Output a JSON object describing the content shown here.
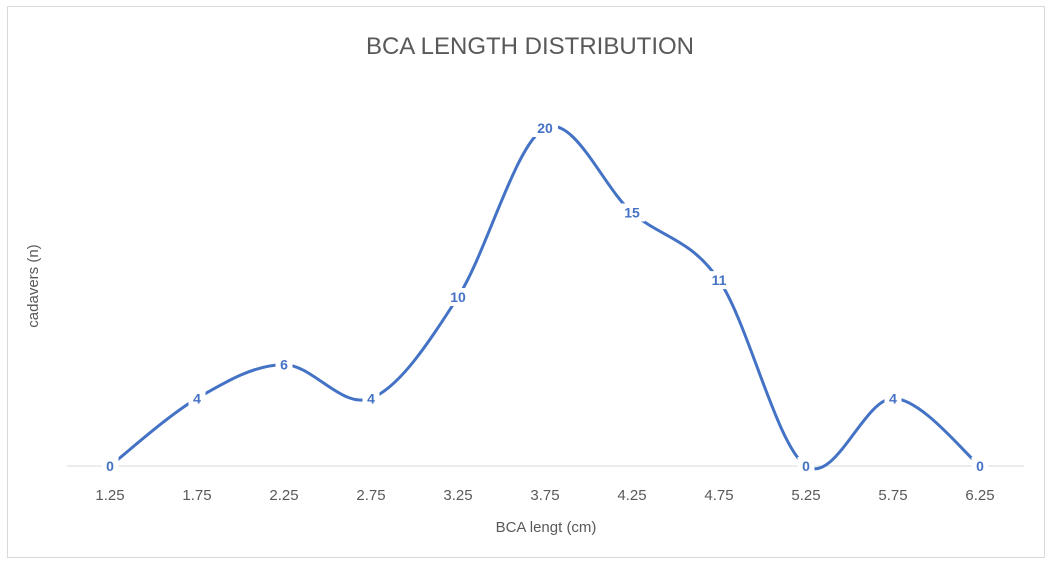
{
  "chart_data": {
    "type": "line",
    "title": "BCA LENGTH DISTRIBUTION",
    "xlabel": "BCA lengt (cm)",
    "ylabel": "cadavers (n)",
    "categories": [
      "1.25",
      "1.75",
      "2.25",
      "2.75",
      "3.25",
      "3.75",
      "4.25",
      "4.75",
      "5.25",
      "5.75",
      "6.25"
    ],
    "values": [
      0,
      4,
      6,
      4,
      10,
      20,
      15,
      11,
      0,
      4,
      0
    ],
    "ylim": [
      0,
      20
    ],
    "grid": false,
    "legend": "none",
    "smooth": true,
    "data_labels": true,
    "colors": {
      "line": "#4472C4",
      "label": "#4472C4",
      "axis": "#d9d9d9",
      "text": "#595959"
    }
  }
}
